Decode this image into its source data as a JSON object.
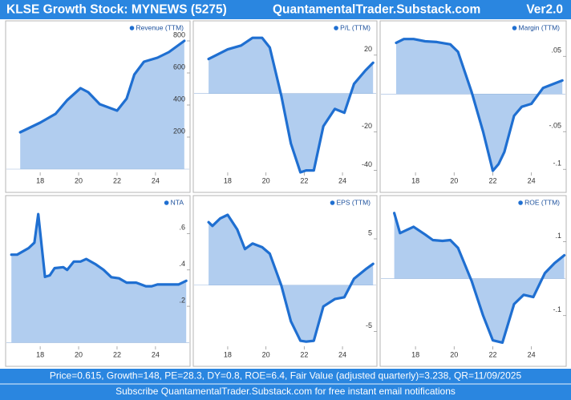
{
  "header": {
    "title": "KLSE Growth Stock: MYNEWS (5275)",
    "site": "QuantamentalTrader.Substack.com",
    "version": "Ver2.0"
  },
  "footer": {
    "line1": "Price=0.615, Growth=148, PE=28.3, DY=0.8, ROE=6.4, Fair Value (adjusted quarterly)=3.238, QR=11/09/2025",
    "line2": "Subscribe QuantamentalTrader.Substack.com for free instant email notifications"
  },
  "chart_data": [
    {
      "type": "area",
      "xlim": [
        16.2,
        25.8
      ],
      "xticks": [
        18,
        20,
        22,
        24
      ],
      "ylim": [
        -20,
        915
      ],
      "yticks": [
        200,
        400,
        600,
        800
      ],
      "x": [
        16.96,
        18,
        18.8,
        19.4,
        20.1,
        20.5,
        21.1,
        22,
        22.5,
        22.9,
        23.4,
        24.1,
        24.7,
        25.5
      ],
      "series": [
        {
          "name": "Revenue (TTM)",
          "color": "#1f6fd1",
          "values": [
            230,
            290,
            345,
            430,
            505,
            480,
            405,
            365,
            440,
            590,
            670,
            695,
            730,
            800
          ]
        }
      ]
    },
    {
      "type": "area",
      "xlim": [
        16.2,
        25.8
      ],
      "xticks": [
        18,
        20,
        22,
        24
      ],
      "ylim": [
        -41,
        37
      ],
      "yticks": [
        -40,
        -20,
        20
      ],
      "x": [
        17,
        17.4,
        18,
        18.7,
        19.3,
        19.8,
        20.2,
        20.8,
        21.3,
        21.8,
        22.1,
        22.5,
        23,
        23.6,
        24.1,
        24.6,
        25.2,
        25.6
      ],
      "series": [
        {
          "name": "P/L (TTM)",
          "color": "#1f6fd1",
          "values": [
            18,
            20,
            23,
            25,
            29,
            29,
            24,
            -1,
            -26,
            -41,
            -40,
            -40,
            -17,
            -8,
            -10,
            5,
            12,
            16
          ]
        }
      ]
    },
    {
      "type": "area",
      "xlim": [
        16.17,
        25.8
      ],
      "xticks": [
        18,
        20,
        22,
        24
      ],
      "ylim": [
        -0.104,
        0.095
      ],
      "yticks": [
        {
          "value": -0.1,
          "label": "-.1"
        },
        {
          "value": -0.05,
          "label": "-.05"
        },
        {
          "value": 0.05,
          "label": ".05"
        }
      ],
      "x": [
        17,
        17.4,
        17.9,
        18.5,
        19.1,
        19.8,
        20.2,
        20.9,
        21.5,
        22,
        22.3,
        22.6,
        23.1,
        23.5,
        24,
        24.6,
        25.2,
        25.6
      ],
      "series": [
        {
          "name": "Margin (TTM)",
          "color": "#1f6fd1",
          "values": [
            0.068,
            0.073,
            0.073,
            0.07,
            0.069,
            0.066,
            0.056,
            0.003,
            -0.05,
            -0.102,
            -0.093,
            -0.077,
            -0.029,
            -0.017,
            -0.013,
            0.008,
            0.014,
            0.018
          ]
        }
      ]
    },
    {
      "type": "area",
      "xlim": [
        16.2,
        25.8
      ],
      "xticks": [
        18,
        20,
        22,
        24
      ],
      "ylim": [
        -0.02,
        0.8
      ],
      "yticks": [
        {
          "value": 0.2,
          "label": ".2"
        },
        {
          "value": 0.4,
          "label": ".4"
        },
        {
          "value": 0.6,
          "label": ".6"
        }
      ],
      "x": [
        16.5,
        16.8,
        17.4,
        17.7,
        17.9,
        18.25,
        18.5,
        18.75,
        19.2,
        19.4,
        19.75,
        20.1,
        20.4,
        20.9,
        21.3,
        21.7,
        22.1,
        22.5,
        23,
        23.5,
        23.8,
        24.1,
        24.7,
        25.2,
        25.6
      ],
      "series": [
        {
          "name": "NTA",
          "color": "#1f6fd1",
          "values": [
            0.484,
            0.484,
            0.52,
            0.55,
            0.707,
            0.362,
            0.37,
            0.41,
            0.415,
            0.4,
            0.446,
            0.446,
            0.46,
            0.43,
            0.4,
            0.36,
            0.354,
            0.33,
            0.33,
            0.31,
            0.31,
            0.32,
            0.32,
            0.32,
            0.34
          ]
        }
      ]
    },
    {
      "type": "area",
      "xlim": [
        16.2,
        25.8
      ],
      "xticks": [
        18,
        20,
        22,
        24
      ],
      "ylim": [
        -6.6,
        9.5
      ],
      "yticks": [
        -5,
        5
      ],
      "x": [
        17,
        17.2,
        17.6,
        18,
        18.5,
        18.9,
        19.3,
        19.8,
        20.2,
        20.8,
        21.3,
        21.8,
        22.1,
        22.5,
        23,
        23.6,
        24.1,
        24.6,
        25.2,
        25.6
      ],
      "series": [
        {
          "name": "EPS (TTM)",
          "color": "#1f6fd1",
          "values": [
            6.8,
            6.4,
            7.2,
            7.6,
            6,
            3.9,
            4.5,
            4.1,
            3.4,
            0,
            -3.9,
            -6,
            -6.1,
            -6,
            -2.3,
            -1.5,
            -1.3,
            0.7,
            1.7,
            2.3
          ]
        }
      ]
    },
    {
      "type": "area",
      "xlim": [
        16.17,
        25.8
      ],
      "xticks": [
        18,
        20,
        22,
        24
      ],
      "ylim": [
        -0.183,
        0.22
      ],
      "yticks": [
        {
          "value": -0.1,
          "label": "-.1"
        },
        {
          "value": 0.1,
          "label": ".1"
        }
      ],
      "x": [
        16.9,
        17.2,
        17.9,
        18.5,
        18.9,
        19.4,
        19.8,
        20.2,
        20.9,
        21.5,
        22,
        22.5,
        23.1,
        23.6,
        24.1,
        24.7,
        25.2,
        25.7
      ],
      "series": [
        {
          "name": "ROE (TTM)",
          "color": "#1f6fd1",
          "values": [
            0.177,
            0.123,
            0.14,
            0.119,
            0.104,
            0.102,
            0.104,
            0.083,
            -0.006,
            -0.1,
            -0.167,
            -0.173,
            -0.069,
            -0.044,
            -0.05,
            0.015,
            0.042,
            0.063
          ]
        }
      ]
    }
  ]
}
